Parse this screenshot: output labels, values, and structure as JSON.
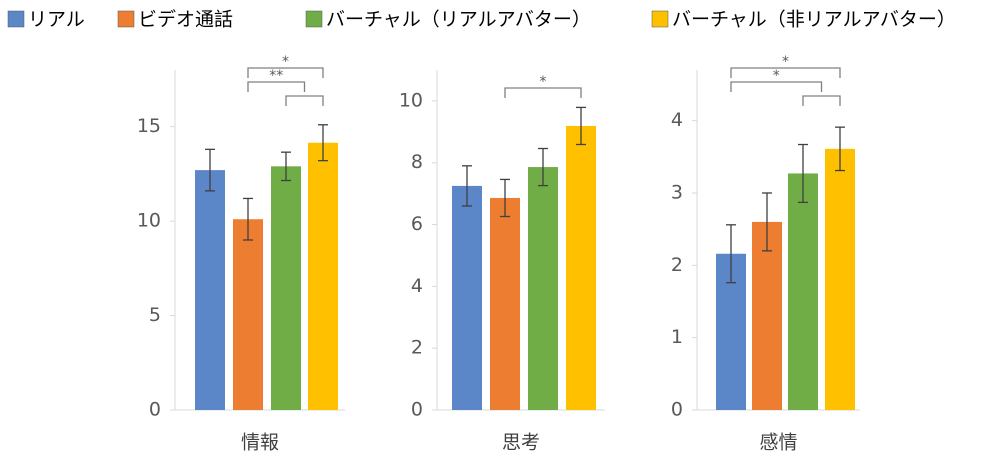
{
  "chart_data": {
    "type": "bar",
    "categories": [
      "情報",
      "思考",
      "感情"
    ],
    "series": [
      {
        "name": "リアル",
        "color": "#5b87c9",
        "values": [
          12.7,
          7.25,
          2.16
        ],
        "errors": [
          1.1,
          0.65,
          0.4
        ]
      },
      {
        "name": "ビデオ通話",
        "color": "#ed7d31",
        "values": [
          10.1,
          6.86,
          2.6
        ],
        "errors": [
          1.1,
          0.6,
          0.4
        ]
      },
      {
        "name": "バーチャル（リアルアバター）",
        "color": "#70ad47",
        "values": [
          12.9,
          7.86,
          3.27
        ],
        "errors": [
          0.75,
          0.6,
          0.4
        ]
      },
      {
        "name": "バーチャル（非リアルアバター）",
        "color": "#ffc000",
        "values": [
          14.15,
          9.19,
          3.61
        ],
        "errors": [
          0.95,
          0.6,
          0.3
        ]
      }
    ],
    "ylims": [
      [
        0,
        18
      ],
      [
        0,
        11
      ],
      [
        0,
        4.7
      ]
    ],
    "yticks": [
      [
        0,
        5,
        10,
        15
      ],
      [
        0,
        2,
        4,
        6,
        8,
        10
      ],
      [
        0,
        1,
        2,
        3,
        4
      ]
    ],
    "significance": [
      [
        {
          "between": [
            1,
            3
          ],
          "label": "*"
        },
        {
          "between": [
            1,
            3
          ],
          "label": "**"
        },
        {
          "between": [
            2,
            3
          ],
          "label": null
        }
      ],
      [
        {
          "between": [
            1,
            3
          ],
          "label": "*"
        }
      ],
      [
        {
          "between": [
            0,
            3
          ],
          "label": "*"
        },
        {
          "between": [
            0,
            3
          ],
          "label": "*"
        },
        {
          "between": [
            2,
            3
          ],
          "label": null
        }
      ]
    ]
  }
}
